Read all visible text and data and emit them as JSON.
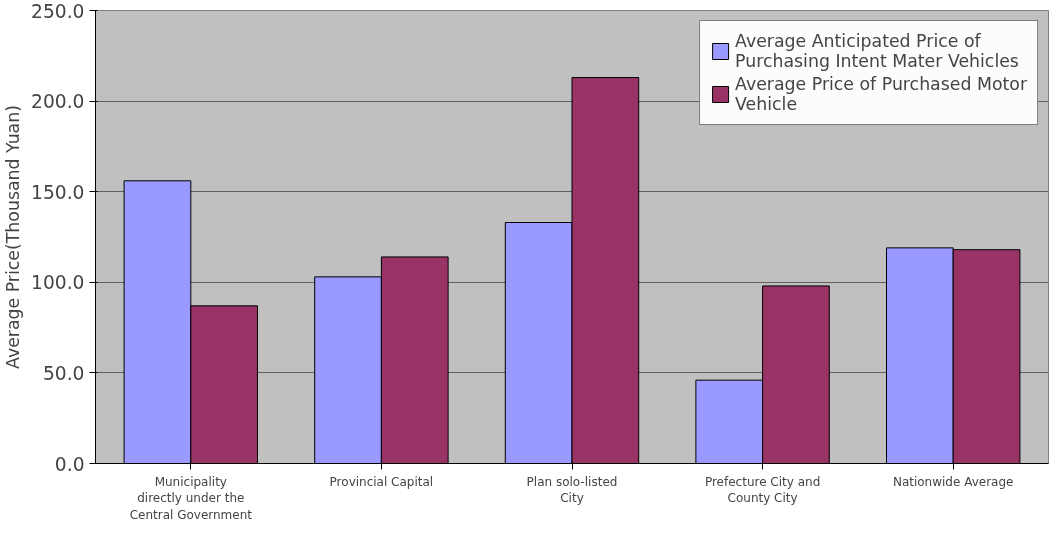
{
  "chart_data": {
    "type": "bar",
    "ylabel": "Average Price(Thousand Yuan)",
    "categories": [
      "Municipality directly under the Central Government",
      "Provincial Capital",
      "Plan solo-listed City",
      "Prefecture City and County City",
      "Nationwide Average"
    ],
    "series": [
      {
        "name": "Average Anticipated Price of Purchasing Intent Mater Vehicles",
        "color": "#9999ff",
        "values": [
          156,
          103,
          133,
          46,
          119
        ]
      },
      {
        "name": "Average Price of Purchased Motor Vehicle",
        "color": "#993366",
        "values": [
          87,
          114,
          213,
          98,
          118
        ]
      }
    ],
    "ylim": [
      0,
      250
    ],
    "yticks": [
      {
        "value": 0,
        "label": "0.0"
      },
      {
        "value": 50,
        "label": "50.0"
      },
      {
        "value": 100,
        "label": "100.0"
      },
      {
        "value": 150,
        "label": "150.0"
      },
      {
        "value": 200,
        "label": "200.0"
      },
      {
        "value": 250,
        "label": "250.0"
      }
    ],
    "grid": "y",
    "legend": "top right"
  }
}
